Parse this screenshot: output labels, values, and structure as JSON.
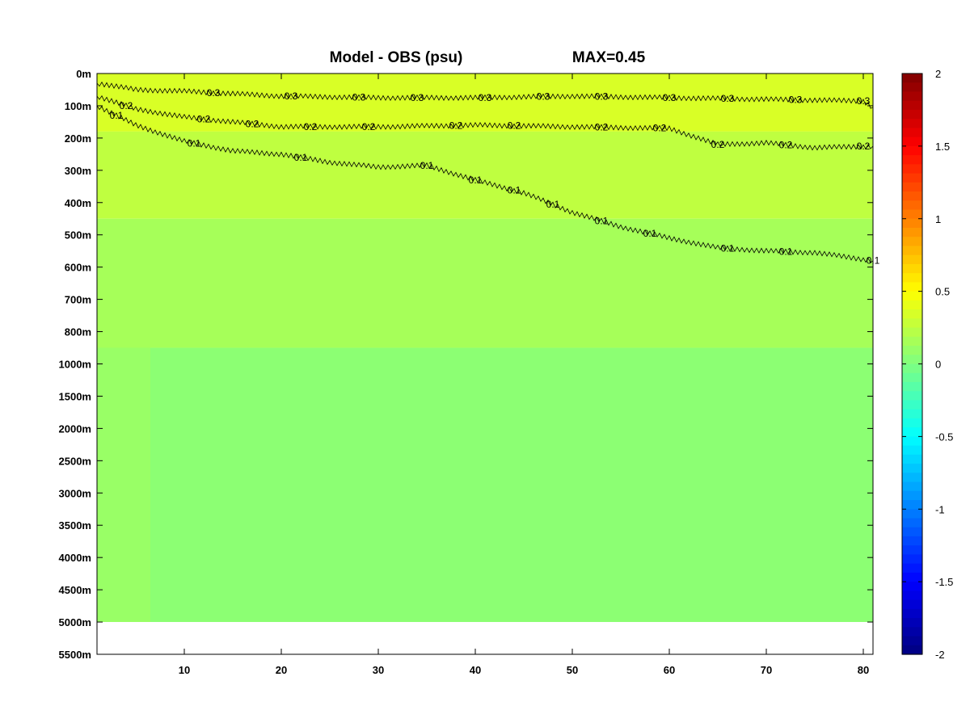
{
  "chart_data": {
    "type": "heatmap",
    "title": "Model - OBS (psu)",
    "max_label": "MAX=0.45",
    "x_ticks": [
      10,
      20,
      30,
      40,
      50,
      60,
      70,
      80
    ],
    "xlim": [
      1,
      81
    ],
    "y_tick_labels": [
      "0m",
      "100m",
      "200m",
      "300m",
      "400m",
      "500m",
      "600m",
      "700m",
      "800m",
      "1000m",
      "1500m",
      "2000m",
      "2500m",
      "3000m",
      "3500m",
      "4000m",
      "4500m",
      "5000m",
      "5500m"
    ],
    "colorbar": {
      "colormap": "jet",
      "clim": [
        -2,
        2
      ],
      "tick_values": [
        2,
        1.5,
        1,
        0.5,
        0,
        -0.5,
        -1,
        -1.5,
        -2
      ],
      "tick_labels": [
        "2",
        "1.5",
        "1",
        "0.5",
        "0",
        "-0.5",
        "-1",
        "-1.5",
        "-2"
      ]
    },
    "field_levels": [
      {
        "from_depth_index": 0,
        "value": 0.35
      },
      {
        "from_depth_index": 1.8,
        "value": 0.25
      },
      {
        "from_depth_index": 4.5,
        "value": 0.15
      },
      {
        "from_depth_index": 8.5,
        "value": 0.05
      }
    ],
    "western_anomaly": {
      "x_to": 6.5,
      "value": 0.1
    },
    "no_data_below_index": 17,
    "contours": [
      {
        "level": 0.3,
        "label": "0.3",
        "x": [
          1,
          5,
          10,
          20,
          30,
          40,
          50,
          60,
          70,
          80,
          81
        ],
        "depth": [
          0.3,
          0.5,
          0.55,
          0.7,
          0.75,
          0.75,
          0.7,
          0.75,
          0.8,
          0.85,
          1.05
        ],
        "label_x": [
          13,
          21,
          28,
          34,
          41,
          47,
          53,
          60,
          66,
          73,
          80
        ]
      },
      {
        "level": 0.2,
        "label": "0.2",
        "x": [
          1,
          5,
          10,
          20,
          30,
          40,
          50,
          60,
          65,
          70,
          75,
          81
        ],
        "depth": [
          0.7,
          1.1,
          1.35,
          1.65,
          1.65,
          1.6,
          1.65,
          1.7,
          2.2,
          2.15,
          2.3,
          2.25
        ],
        "label_x": [
          4,
          12,
          17,
          23,
          29,
          38,
          44,
          53,
          59,
          65,
          72,
          80
        ]
      },
      {
        "level": 0.1,
        "label": "0.1",
        "x": [
          1,
          5,
          10,
          15,
          20,
          25,
          30,
          35,
          40,
          45,
          50,
          55,
          60,
          65,
          70,
          75,
          81
        ],
        "depth": [
          1.0,
          1.6,
          2.1,
          2.4,
          2.5,
          2.75,
          2.9,
          2.85,
          3.3,
          3.7,
          4.3,
          4.75,
          5.1,
          5.4,
          5.5,
          5.55,
          5.8
        ],
        "label_x": [
          3,
          11,
          22,
          35,
          40,
          44,
          48,
          53,
          58,
          66,
          72,
          81
        ]
      }
    ]
  }
}
